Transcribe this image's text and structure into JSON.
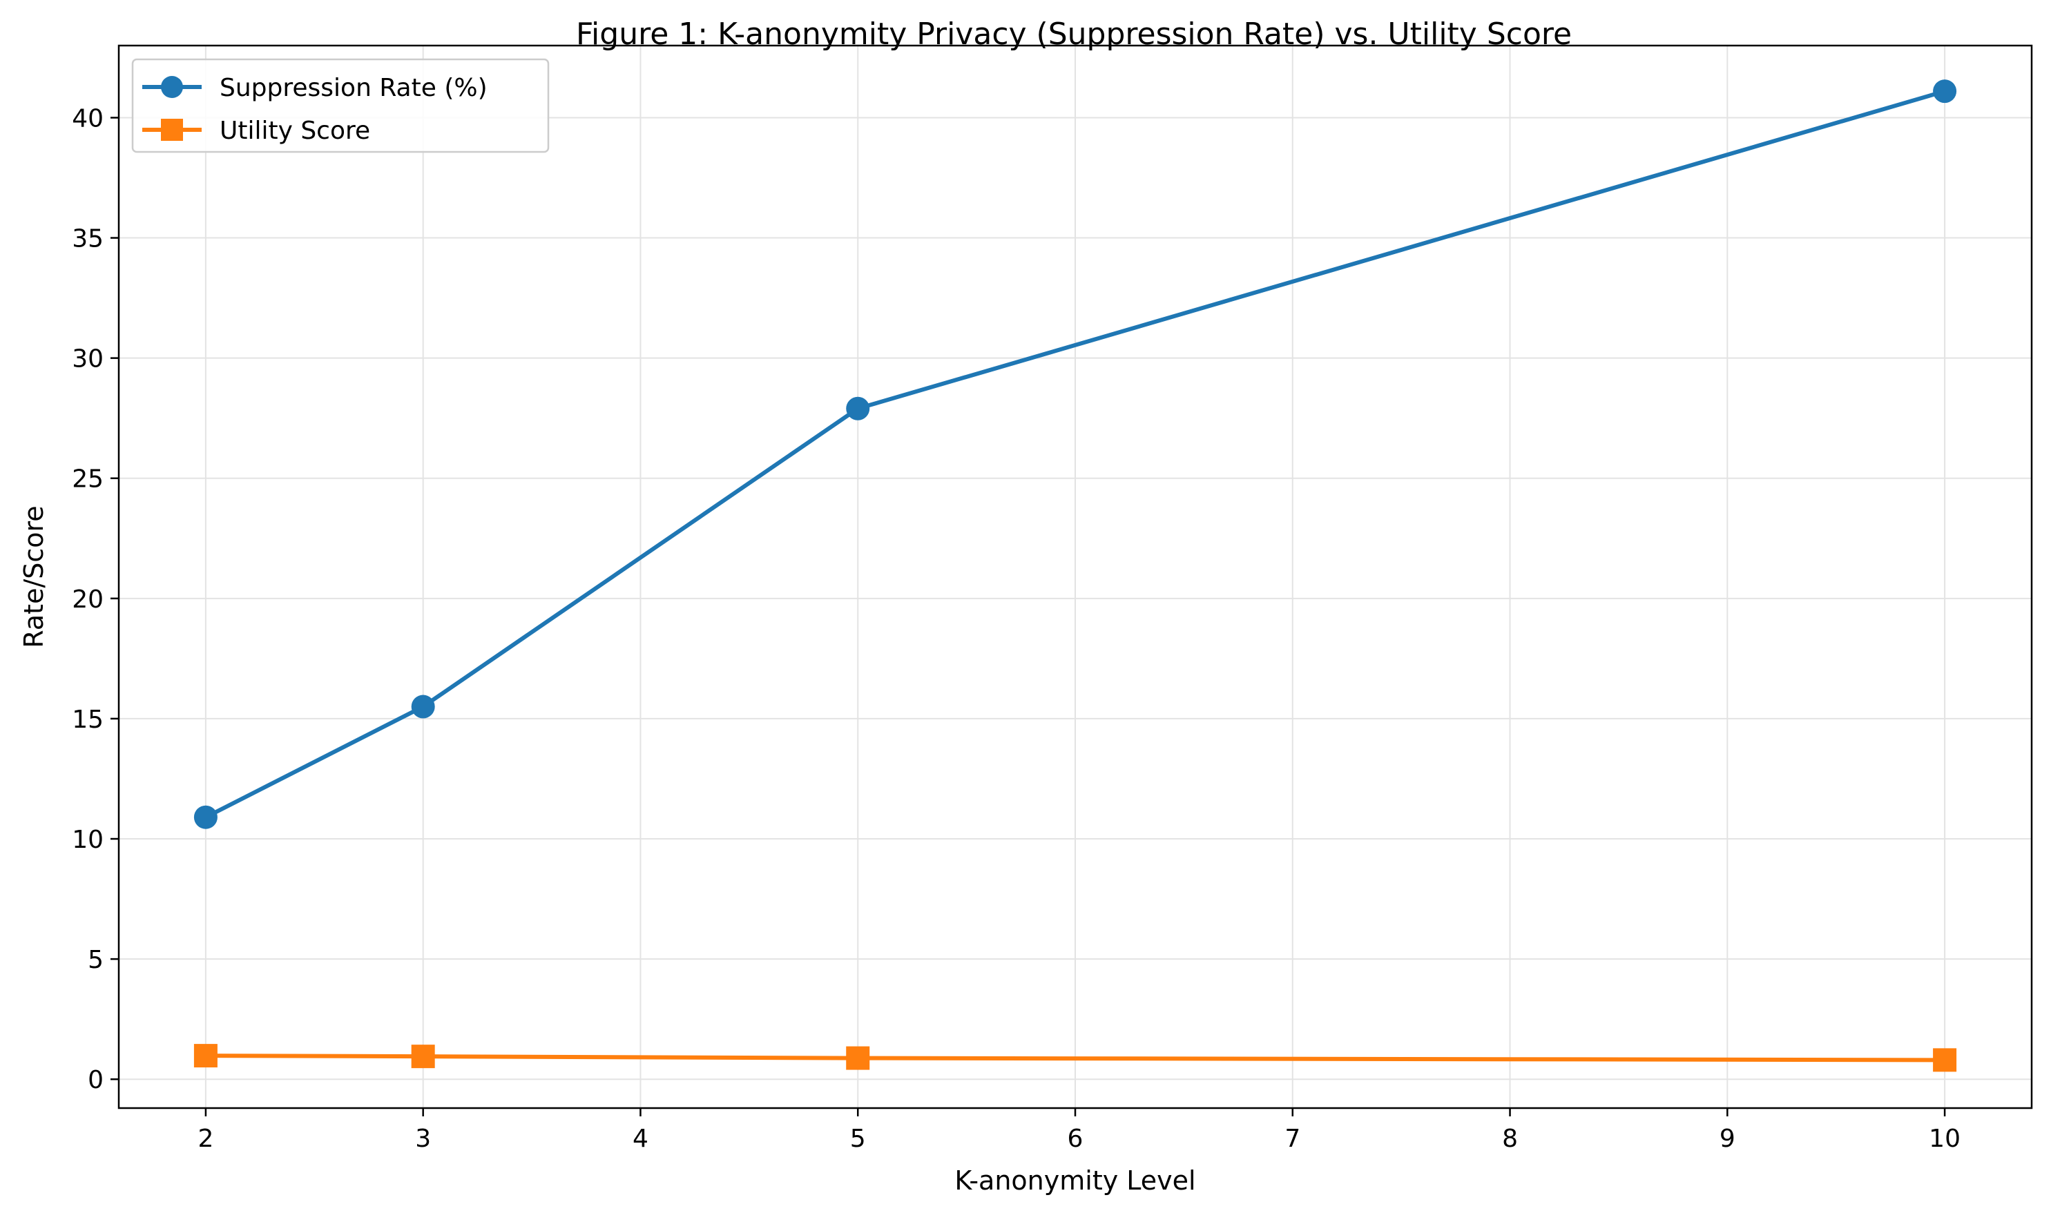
{
  "chart_data": {
    "type": "line",
    "title": "Figure 1: K-anonymity Privacy (Suppression Rate) vs. Utility Score",
    "xlabel": "K-anonymity Level",
    "ylabel": "Rate/Score",
    "x": [
      2,
      3,
      5,
      10
    ],
    "xlim": [
      1.6,
      10.4
    ],
    "ylim": [
      -1.2,
      43.0
    ],
    "xticks": [
      2,
      3,
      4,
      5,
      6,
      7,
      8,
      9,
      10
    ],
    "yticks": [
      0,
      5,
      10,
      15,
      20,
      25,
      30,
      35,
      40
    ],
    "grid": true,
    "legend_position": "top-left",
    "series": [
      {
        "name": "Suppression Rate (%)",
        "color": "#1f77b4",
        "marker": "circle",
        "values": [
          10.9,
          15.5,
          27.9,
          41.1
        ]
      },
      {
        "name": "Utility Score",
        "color": "#ff7f0e",
        "marker": "square",
        "values": [
          0.98,
          0.95,
          0.88,
          0.8
        ]
      }
    ]
  }
}
